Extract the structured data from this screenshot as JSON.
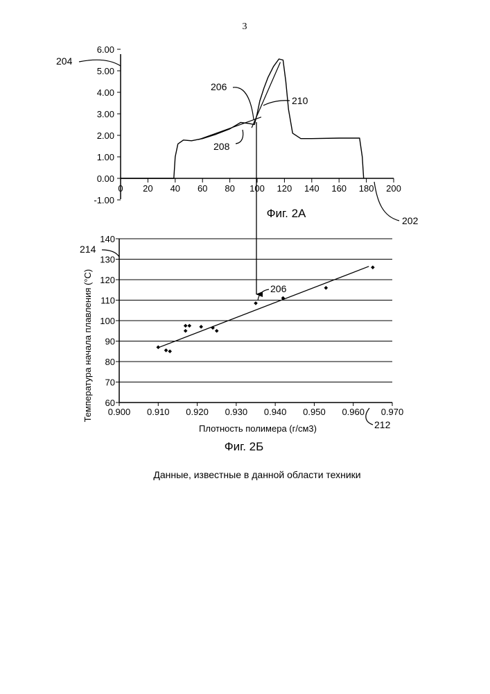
{
  "page_number": "3",
  "caption": "Данные, известные в данной области техники",
  "chart_data": [
    {
      "type": "line",
      "figure_label": "Фиг. 2А",
      "xlim": [
        0,
        200
      ],
      "ylim": [
        -1,
        6
      ],
      "x_ticks": [
        "0",
        "20",
        "40",
        "60",
        "80",
        "100",
        "120",
        "140",
        "160",
        "180",
        "200"
      ],
      "y_ticks": [
        "-1.00",
        "0.00",
        "1.00",
        "2.00",
        "3.00",
        "4.00",
        "5.00",
        "6.00"
      ],
      "grid": false,
      "series": [
        {
          "x": [
            0,
            39,
            40,
            42,
            46,
            52,
            60,
            70,
            80,
            88,
            94,
            98,
            100,
            102,
            105,
            108,
            112,
            116,
            119,
            121,
            123,
            126,
            132,
            140,
            160,
            175,
            177,
            178
          ],
          "y": [
            0,
            0,
            1.0,
            1.6,
            1.78,
            1.75,
            1.85,
            2.05,
            2.3,
            2.6,
            2.55,
            2.5,
            3.0,
            3.6,
            4.2,
            4.7,
            5.2,
            5.55,
            5.5,
            4.5,
            3.2,
            2.1,
            1.85,
            1.85,
            1.87,
            1.87,
            1.0,
            0
          ]
        }
      ],
      "tangent_lines": [
        {
          "x": [
            57,
            103
          ],
          "y": [
            1.8,
            2.85
          ]
        },
        {
          "x": [
            96,
            117
          ],
          "y": [
            2.35,
            5.4
          ]
        }
      ],
      "reference_labels": [
        "204",
        "206",
        "208",
        "210",
        "202"
      ]
    },
    {
      "type": "scatter",
      "figure_label": "Фиг. 2Б",
      "xlabel": "Плотность полимера (г/см3)",
      "ylabel": "Температура начала плавления  (°С)",
      "xlim": [
        0.9,
        0.97
      ],
      "ylim": [
        60,
        140
      ],
      "x_ticks": [
        "0.900",
        "0.910",
        "0.920",
        "0.930",
        "0.940",
        "0.950",
        "0.960",
        "0.970"
      ],
      "y_ticks": [
        "60",
        "70",
        "80",
        "90",
        "100",
        "110",
        "120",
        "130",
        "140"
      ],
      "grid": "horizontal",
      "points": [
        {
          "x": 0.91,
          "y": 87
        },
        {
          "x": 0.912,
          "y": 85.5
        },
        {
          "x": 0.913,
          "y": 85
        },
        {
          "x": 0.917,
          "y": 97.5
        },
        {
          "x": 0.917,
          "y": 95
        },
        {
          "x": 0.918,
          "y": 97.5
        },
        {
          "x": 0.921,
          "y": 97
        },
        {
          "x": 0.924,
          "y": 96.5
        },
        {
          "x": 0.925,
          "y": 95
        },
        {
          "x": 0.935,
          "y": 108.5
        },
        {
          "x": 0.942,
          "y": 111
        },
        {
          "x": 0.953,
          "y": 116
        },
        {
          "x": 0.965,
          "y": 126
        }
      ],
      "trendline": {
        "x": [
          0.91,
          0.964
        ],
        "y": [
          86.8,
          126.5
        ]
      },
      "reference_labels": [
        "214",
        "206",
        "212"
      ]
    }
  ]
}
